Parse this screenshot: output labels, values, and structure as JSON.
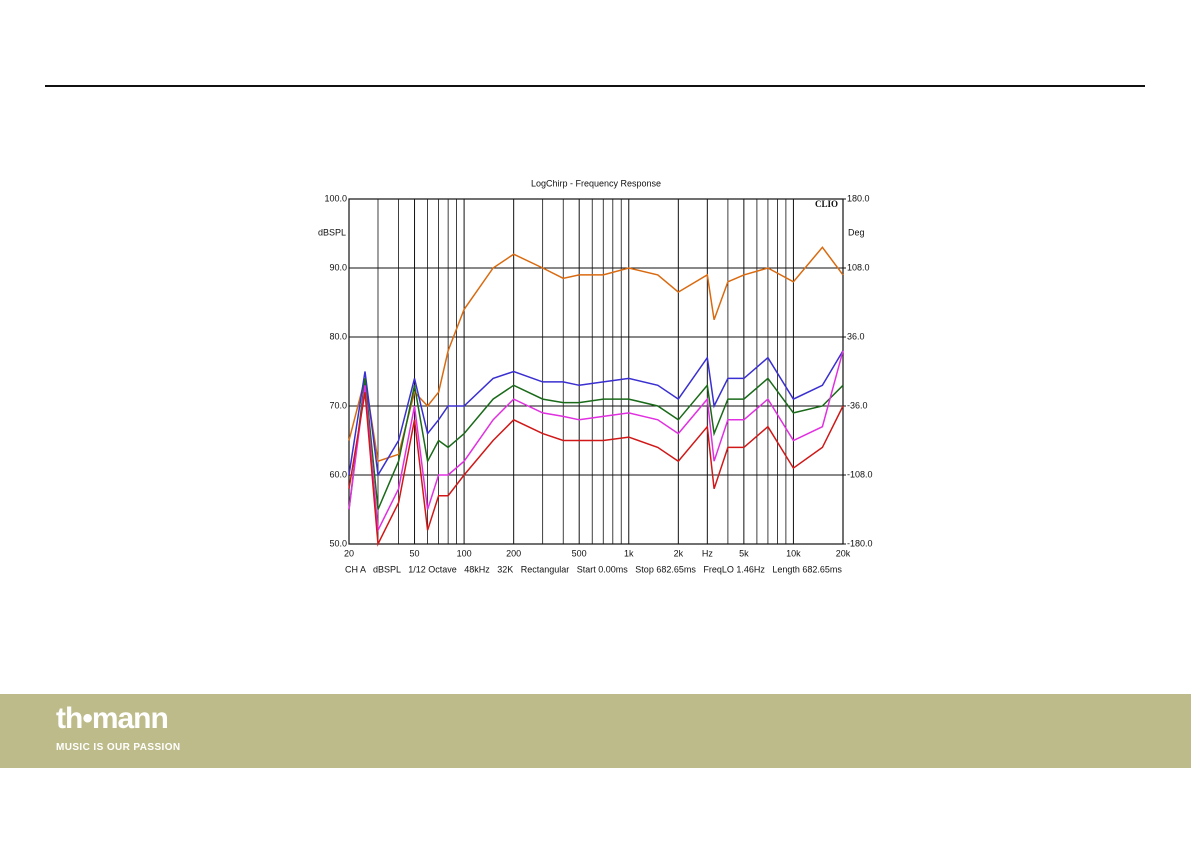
{
  "chart_data": {
    "type": "line",
    "title": "LogChirp - Frequency Response",
    "ylabel": "dBSPL",
    "y2label": "Deg",
    "annotation": "CLIO",
    "info": "CH A   dBSPL   1/12 Octave   48kHz   32K   Rectangular   Start 0.00ms   Stop 682.65ms   FreqLO 1.46Hz   Length 682.65ms",
    "log_x": true,
    "grid": true,
    "xlim": [
      20,
      20000
    ],
    "ylim": [
      50,
      100
    ],
    "y2lim": [
      -180,
      180
    ],
    "xticks": [
      20,
      50,
      100,
      200,
      500,
      {
        "value": 1000,
        "label": "1k"
      },
      {
        "value": 2000,
        "label": "2k"
      },
      {
        "value": 3000,
        "label": "Hz"
      },
      {
        "value": 5000,
        "label": "5k"
      },
      {
        "value": 10000,
        "label": "10k"
      },
      {
        "value": 20000,
        "label": "20k"
      }
    ],
    "xgrid": [
      30,
      40,
      60,
      70,
      80,
      90,
      300,
      400,
      600,
      700,
      800,
      900,
      4000,
      6000,
      7000,
      8000,
      9000
    ],
    "yticks": [
      {
        "value": 100,
        "label": "100.0"
      },
      {
        "value": 90,
        "label": "90.0"
      },
      {
        "value": 80,
        "label": "80.0"
      },
      {
        "value": 70,
        "label": "70.0"
      },
      {
        "value": 60,
        "label": "60.0"
      },
      {
        "value": 50,
        "label": "50.0"
      }
    ],
    "y2ticks": [
      {
        "value": 180,
        "label": "180.0"
      },
      {
        "value": 108,
        "label": "108.0"
      },
      {
        "value": 36,
        "label": "36.0"
      },
      {
        "value": -36,
        "label": "-36.0"
      },
      {
        "value": -108,
        "label": "-108.0"
      },
      {
        "value": -180,
        "label": "-180.0"
      }
    ],
    "x": [
      20,
      25,
      30,
      40,
      50,
      60,
      70,
      80,
      100,
      150,
      200,
      300,
      400,
      500,
      700,
      1000,
      1500,
      2000,
      3000,
      3300,
      4000,
      5000,
      7000,
      10000,
      15000,
      20000
    ],
    "series": [
      {
        "color": "#d96a10",
        "values": [
          65,
          74,
          62,
          63,
          72,
          70,
          72,
          78,
          84,
          90,
          92,
          90,
          88.5,
          89,
          89,
          90,
          89,
          86.5,
          89,
          82.5,
          88,
          89,
          90,
          88,
          93,
          89
        ]
      },
      {
        "color": "#3a2fd0",
        "values": [
          60,
          75,
          60,
          65,
          74,
          66,
          68,
          70,
          70,
          74,
          75,
          73.5,
          73.5,
          73,
          73.5,
          74,
          73,
          71,
          77,
          70,
          74,
          74,
          77,
          71,
          73,
          78
        ]
      },
      {
        "color": "#1a6a1a",
        "values": [
          55,
          74,
          55,
          62,
          73,
          62,
          65,
          64,
          66,
          71,
          73,
          71,
          70.5,
          70.5,
          71,
          71,
          70,
          68,
          73,
          66,
          71,
          71,
          74,
          69,
          70,
          73
        ]
      },
      {
        "color": "#e030e0",
        "values": [
          55,
          73,
          52,
          58,
          70,
          55,
          60,
          60,
          62,
          68,
          71,
          69,
          68.5,
          68,
          68.5,
          69,
          68,
          66,
          71,
          62,
          68,
          68,
          71,
          65,
          67,
          78
        ]
      },
      {
        "color": "#d01818",
        "values": [
          58,
          72,
          50,
          56,
          68,
          52,
          57,
          57,
          60,
          65,
          68,
          66,
          65,
          65,
          65,
          65.5,
          64,
          62,
          67,
          58,
          64,
          64,
          67,
          61,
          64,
          70
        ]
      }
    ]
  },
  "footer": {
    "brand": "th•mann",
    "slogan": "MUSIC IS OUR PASSION"
  }
}
